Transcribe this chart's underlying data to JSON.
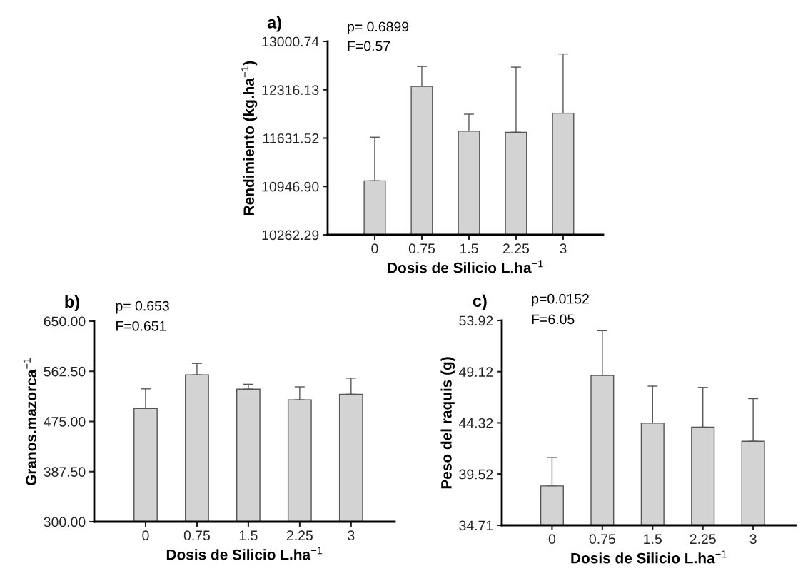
{
  "chart_data": [
    {
      "type": "bar",
      "title": "a)",
      "xlabel": "Dosis de Silicio L.ha$^{−1}$",
      "ylabel": "Rendimiento (kg.ha$^{−1}$)",
      "annotations": [
        "p= 0.6899",
        "F=0.57"
      ],
      "categories": [
        "0",
        "0.75",
        "1.5",
        "2.25",
        "3"
      ],
      "values": [
        11027,
        12363,
        11729,
        11714,
        11984
      ],
      "errors": [
        [
          11027,
          11644
        ],
        [
          12363,
          12646
        ],
        [
          11729,
          11970
        ],
        [
          11714,
          12636
        ],
        [
          11984,
          12823
        ]
      ],
      "color": "#d3d3d3",
      "ylim": [
        10262.29,
        13000.74
      ],
      "yticks": [
        {
          "value": 10262.29,
          "label": "10262.29"
        },
        {
          "value": 10946.9,
          "label": "10946.90"
        },
        11631.52,
        12316.13,
        13000.74
      ],
      "grid": false,
      "legend": false
    },
    {
      "type": "bar",
      "title": "b)",
      "xlabel": "Dosis de Silicio L.ha$^{−1}$",
      "ylabel": "Granos.mazorca$^{−1}$",
      "annotations": [
        "p= 0.653",
        "F=0.651"
      ],
      "categories": [
        "0",
        "0.75",
        "1.5",
        "2.25",
        "3"
      ],
      "values": [
        497.7,
        556.3,
        531.4,
        512.8,
        522.5
      ],
      "errors": [
        [
          497.7,
          531.9
        ],
        [
          556.3,
          576.3
        ],
        [
          531.4,
          539.9
        ],
        [
          512.8,
          535.4
        ],
        [
          522.5,
          550.5
        ]
      ],
      "color": "#d3d3d3",
      "ylim": [
        300,
        650
      ],
      "yticks": [
        {
          "value": 300,
          "label": "300.00"
        },
        {
          "value": 387.5,
          "label": "387.50"
        },
        {
          "value": 475,
          "label": "475.00"
        },
        {
          "value": 562.5,
          "label": "562.50"
        },
        {
          "value": 650,
          "label": "650.00"
        }
      ],
      "grid": false,
      "legend": false
    },
    {
      "type": "bar",
      "title": "c)",
      "xlabel": "Dosis de Silicio L.ha$^{−1}$",
      "ylabel": "Peso del raquis (g)",
      "annotations": [
        "p=0.0152",
        "F=6.05"
      ],
      "categories": [
        "0",
        "0.75",
        "1.5",
        "2.25",
        "3"
      ],
      "values": [
        38.4,
        48.77,
        44.29,
        43.91,
        42.59
      ],
      "errors": [
        [
          38.4,
          41.06
        ],
        [
          48.77,
          52.96
        ],
        [
          44.29,
          47.76
        ],
        [
          43.91,
          47.64
        ],
        [
          42.59,
          46.59
        ]
      ],
      "color": "#d3d3d3",
      "ylim": [
        34.71,
        53.92
      ],
      "yticks": [
        34.71,
        39.52,
        44.32,
        49.12,
        53.92
      ],
      "grid": false,
      "legend": false
    }
  ]
}
